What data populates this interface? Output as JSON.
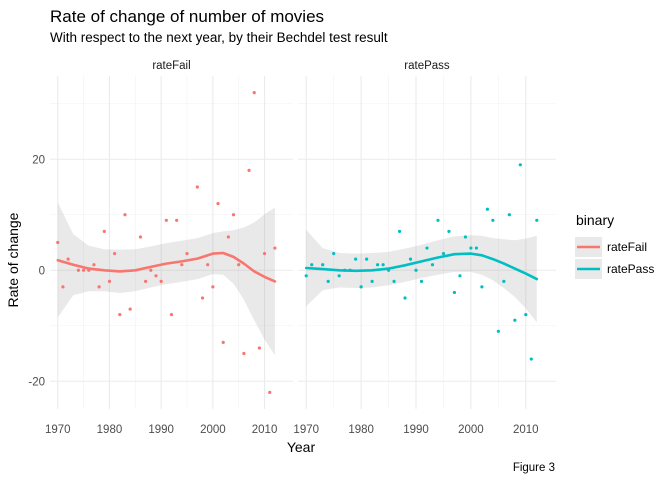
{
  "title": "Rate of change of number of movies",
  "subtitle": "With respect to the next year, by their Bechdel test result",
  "caption": "Figure 3",
  "chart_data": {
    "type": "scatter",
    "title": "Rate of change of number of movies",
    "subtitle": "With respect to the next year, by their Bechdel test result",
    "xlabel": "Year",
    "ylabel": "Rate of change",
    "xlim": [
      1968.5,
      2015.5
    ],
    "ylim": [
      -25,
      35
    ],
    "x_ticks": [
      1970,
      1980,
      1990,
      2000,
      2010
    ],
    "y_ticks": [
      -20,
      0,
      20
    ],
    "grid": true,
    "legend": {
      "title": "binary",
      "position": "right",
      "entries": [
        "rateFail",
        "ratePass"
      ]
    },
    "series": [
      {
        "name": "rateFail",
        "color": "#F8766D",
        "points": [
          [
            1970,
            5
          ],
          [
            1971,
            -3
          ],
          [
            1972,
            2
          ],
          [
            1974,
            0
          ],
          [
            1975,
            0
          ],
          [
            1976,
            0
          ],
          [
            1977,
            1
          ],
          [
            1978,
            -3
          ],
          [
            1979,
            7
          ],
          [
            1980,
            -2
          ],
          [
            1981,
            3
          ],
          [
            1982,
            -8
          ],
          [
            1983,
            10
          ],
          [
            1984,
            -7
          ],
          [
            1986,
            6
          ],
          [
            1987,
            -2
          ],
          [
            1988,
            0
          ],
          [
            1989,
            -1
          ],
          [
            1990,
            -2
          ],
          [
            1991,
            9
          ],
          [
            1992,
            -8
          ],
          [
            1993,
            9
          ],
          [
            1994,
            1
          ],
          [
            1995,
            3
          ],
          [
            1997,
            15
          ],
          [
            1998,
            -5
          ],
          [
            1999,
            1
          ],
          [
            2000,
            -3
          ],
          [
            2001,
            12
          ],
          [
            2002,
            -13
          ],
          [
            2003,
            6
          ],
          [
            2004,
            10
          ],
          [
            2005,
            1
          ],
          [
            2006,
            -15
          ],
          [
            2007,
            18
          ],
          [
            2008,
            32
          ],
          [
            2009,
            -14
          ],
          [
            2010,
            3
          ],
          [
            2011,
            -22
          ],
          [
            2012,
            4
          ]
        ],
        "smooth": [
          [
            1970,
            1.8
          ],
          [
            1973,
            1.0
          ],
          [
            1976,
            0.3
          ],
          [
            1979,
            0.0
          ],
          [
            1982,
            -0.2
          ],
          [
            1985,
            0.0
          ],
          [
            1988,
            0.6
          ],
          [
            1991,
            1.2
          ],
          [
            1994,
            1.6
          ],
          [
            1997,
            2.1
          ],
          [
            2000,
            3.0
          ],
          [
            2002,
            3.1
          ],
          [
            2004,
            2.4
          ],
          [
            2006,
            1.2
          ],
          [
            2008,
            -0.2
          ],
          [
            2010,
            -1.2
          ],
          [
            2012,
            -2.0
          ]
        ],
        "band": [
          [
            1970,
            -8.5,
            12.2
          ],
          [
            1973,
            -4.5,
            6.5
          ],
          [
            1976,
            -3.8,
            4.4
          ],
          [
            1979,
            -3.8,
            3.8
          ],
          [
            1982,
            -4.1,
            3.7
          ],
          [
            1985,
            -3.8,
            3.8
          ],
          [
            1988,
            -3.1,
            4.3
          ],
          [
            1991,
            -2.5,
            4.9
          ],
          [
            1994,
            -2.1,
            5.3
          ],
          [
            1997,
            -1.6,
            5.8
          ],
          [
            2000,
            -0.7,
            6.7
          ],
          [
            2002,
            -0.8,
            7.0
          ],
          [
            2004,
            -2.4,
            7.2
          ],
          [
            2006,
            -5.3,
            7.7
          ],
          [
            2008,
            -9.0,
            8.6
          ],
          [
            2010,
            -12.5,
            10.1
          ],
          [
            2012,
            -15.3,
            11.3
          ]
        ]
      },
      {
        "name": "ratePass",
        "color": "#00BFC4",
        "points": [
          [
            1970,
            -1
          ],
          [
            1971,
            1
          ],
          [
            1973,
            1
          ],
          [
            1974,
            -2
          ],
          [
            1975,
            3
          ],
          [
            1976,
            -1
          ],
          [
            1977,
            0
          ],
          [
            1978,
            0
          ],
          [
            1979,
            2
          ],
          [
            1980,
            -3
          ],
          [
            1981,
            2
          ],
          [
            1982,
            -2
          ],
          [
            1983,
            1
          ],
          [
            1984,
            1
          ],
          [
            1985,
            0
          ],
          [
            1986,
            -2
          ],
          [
            1987,
            7
          ],
          [
            1988,
            -5
          ],
          [
            1989,
            2
          ],
          [
            1990,
            0
          ],
          [
            1991,
            -2
          ],
          [
            1992,
            4
          ],
          [
            1993,
            1
          ],
          [
            1994,
            9
          ],
          [
            1995,
            3
          ],
          [
            1996,
            7
          ],
          [
            1997,
            -4
          ],
          [
            1998,
            -1
          ],
          [
            1999,
            6
          ],
          [
            2000,
            4
          ],
          [
            2001,
            4
          ],
          [
            2002,
            -3
          ],
          [
            2003,
            11
          ],
          [
            2004,
            9
          ],
          [
            2005,
            -11
          ],
          [
            2006,
            -2
          ],
          [
            2007,
            10
          ],
          [
            2008,
            -9
          ],
          [
            2009,
            19
          ],
          [
            2010,
            -8
          ],
          [
            2011,
            -16
          ],
          [
            2012,
            9
          ]
        ],
        "smooth": [
          [
            1970,
            0.4
          ],
          [
            1973,
            0.2
          ],
          [
            1976,
            0.0
          ],
          [
            1979,
            -0.1
          ],
          [
            1982,
            0.0
          ],
          [
            1985,
            0.3
          ],
          [
            1988,
            0.9
          ],
          [
            1991,
            1.6
          ],
          [
            1994,
            2.3
          ],
          [
            1997,
            2.9
          ],
          [
            2000,
            3.0
          ],
          [
            2002,
            2.7
          ],
          [
            2004,
            2.0
          ],
          [
            2006,
            1.2
          ],
          [
            2008,
            0.3
          ],
          [
            2010,
            -0.6
          ],
          [
            2012,
            -1.6
          ]
        ],
        "band": [
          [
            1970,
            -6.5,
            7.3
          ],
          [
            1973,
            -3.6,
            4.0
          ],
          [
            1976,
            -3.1,
            3.1
          ],
          [
            1979,
            -3.2,
            3.0
          ],
          [
            1982,
            -3.1,
            3.1
          ],
          [
            1985,
            -2.7,
            3.3
          ],
          [
            1988,
            -2.1,
            3.9
          ],
          [
            1991,
            -1.4,
            4.6
          ],
          [
            1994,
            -0.8,
            5.4
          ],
          [
            1997,
            -0.3,
            6.1
          ],
          [
            2000,
            -0.3,
            6.3
          ],
          [
            2002,
            -0.8,
            6.2
          ],
          [
            2004,
            -1.8,
            5.8
          ],
          [
            2006,
            -3.2,
            5.6
          ],
          [
            2008,
            -4.8,
            5.4
          ],
          [
            2010,
            -6.9,
            5.7
          ],
          [
            2012,
            -9.4,
            6.2
          ]
        ]
      }
    ]
  }
}
